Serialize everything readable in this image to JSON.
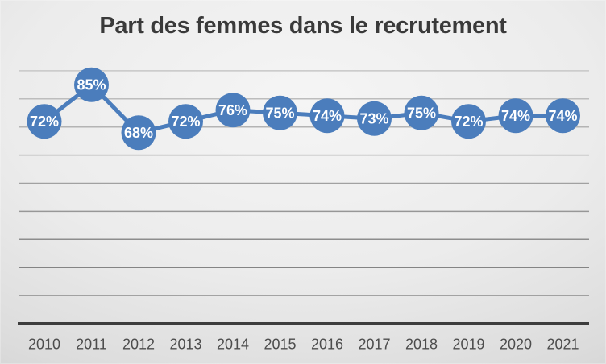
{
  "chart": {
    "title": "Part des femmes dans le recrutement"
  },
  "chart_data": {
    "type": "line",
    "title": "Part des femmes dans le recrutement",
    "categories": [
      "2010",
      "2011",
      "2012",
      "2013",
      "2014",
      "2015",
      "2016",
      "2017",
      "2018",
      "2019",
      "2020",
      "2021"
    ],
    "values": [
      72,
      85,
      68,
      72,
      76,
      75,
      74,
      73,
      75,
      72,
      74,
      74
    ],
    "data_labels": [
      "72%",
      "85%",
      "68%",
      "72%",
      "76%",
      "75%",
      "74%",
      "73%",
      "75%",
      "72%",
      "74%",
      "74%"
    ],
    "unit": "%",
    "xlabel": "",
    "ylabel": "",
    "ylim": [
      0,
      90
    ],
    "gridline_step": 10,
    "grid": "horizontal",
    "legend_position": "none",
    "y_axis_labels_visible": false,
    "colors": {
      "line": "#4b7dbc",
      "marker_fill": "#4b7dbc",
      "marker_label_text": "#ffffff",
      "title_text": "#3a3a3a",
      "axis_line": "#3d3d3d",
      "tick_label_text": "#4d4d4d",
      "gridline_light": "#c7c7c7",
      "gridline_dark": "#7a7a7a"
    }
  }
}
